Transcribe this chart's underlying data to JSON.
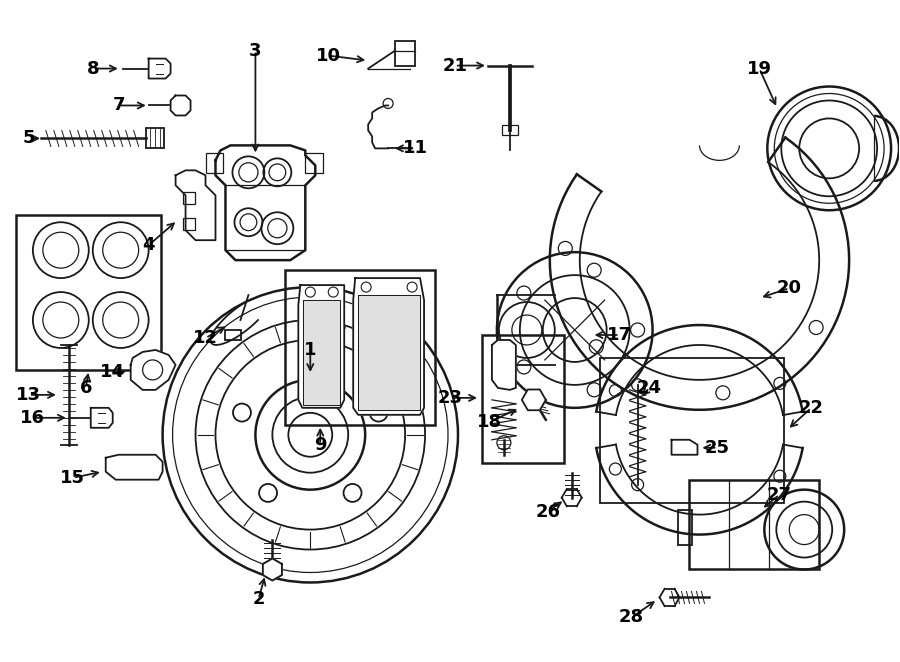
{
  "background_color": "#ffffff",
  "line_color": "#1a1a1a",
  "text_color": "#000000",
  "fig_width": 9.0,
  "fig_height": 6.62
}
